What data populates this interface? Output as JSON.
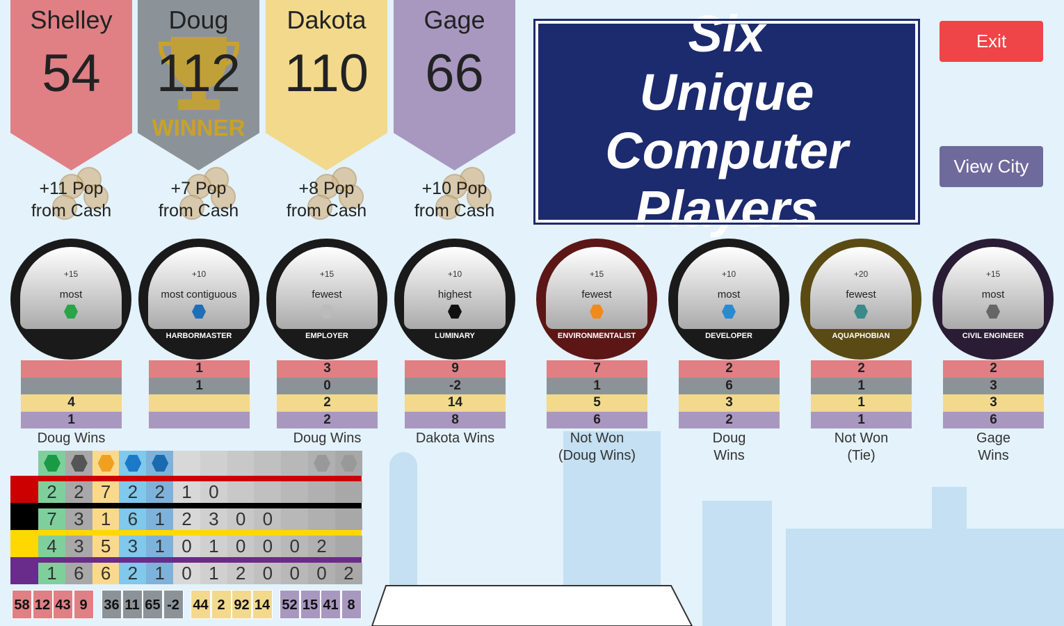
{
  "players": [
    {
      "name": "Shelley",
      "score": "54",
      "color": "#e07f84",
      "cash": "+11 Pop\nfrom Cash"
    },
    {
      "name": "Doug",
      "score": "112",
      "color": "#8c9398",
      "cash": "+7 Pop\nfrom Cash",
      "badge": "WINNER"
    },
    {
      "name": "Dakota",
      "score": "110",
      "color": "#f2d98c",
      "cash": "+8 Pop\nfrom Cash"
    },
    {
      "name": "Gage",
      "score": "66",
      "color": "#a898c0",
      "cash": "+10 Pop\nfrom Cash"
    }
  ],
  "buttons": {
    "exit": "Exit",
    "view_city": "View City",
    "exit_color": "#ef4448",
    "view_city_color": "#6e6a9c"
  },
  "goals": [
    {
      "points": "+15",
      "condition": "most",
      "title": "",
      "icon_color": "#2aa44a",
      "values": [
        "",
        "",
        "4",
        "1"
      ],
      "result": "Doug Wins",
      "ring": "#1a1a1a"
    },
    {
      "points": "+10",
      "condition": "most contiguous",
      "title": "HARBORMASTER",
      "icon_color": "#1f6fb8",
      "values": [
        "1",
        "1",
        "",
        ""
      ],
      "result": "",
      "ring": "#1a1a1a"
    },
    {
      "points": "+15",
      "condition": "fewest",
      "title": "EMPLOYER",
      "icon_color": "#bbbbbb",
      "values": [
        "3",
        "0",
        "2",
        "2"
      ],
      "result": "Doug Wins",
      "ring": "#1a1a1a"
    },
    {
      "points": "+10",
      "condition": "highest",
      "title": "LUMINARY",
      "icon_color": "#111111",
      "values": [
        "9",
        "-2",
        "14",
        "8"
      ],
      "result": "Dakota Wins",
      "ring": "#1a1a1a"
    },
    {
      "points": "+15",
      "condition": "fewest",
      "title": "ENVIRONMENTALIST",
      "icon_color": "#f08a1c",
      "values": [
        "7",
        "1",
        "5",
        "6"
      ],
      "result": "Not Won\n(Doug Wins)",
      "ring": "#5c1616"
    },
    {
      "points": "+10",
      "condition": "most",
      "title": "DEVELOPER",
      "icon_color": "#2a8ad0",
      "values": [
        "2",
        "6",
        "3",
        "2"
      ],
      "result": "Doug\nWins",
      "ring": "#1a1a1a"
    },
    {
      "points": "+20",
      "condition": "fewest",
      "title": "AQUAPHOBIAN",
      "icon_color": "#3a8a8a",
      "values": [
        "2",
        "1",
        "1",
        "1"
      ],
      "result": "Not Won\n(Tie)",
      "ring": "#5a4a14"
    },
    {
      "points": "+15",
      "condition": "most",
      "title": "CIVIL ENGINEER",
      "icon_color": "#666666",
      "values": [
        "2",
        "3",
        "3",
        "6"
      ],
      "result": "Gage\nWins",
      "ring": "#2a1c34"
    }
  ],
  "table": {
    "header_icons": [
      "residential-icon",
      "civic-icon",
      "industrial-icon",
      "commercial-icon",
      "lake-icon",
      "",
      "",
      "",
      "",
      "",
      "airport-icon",
      "2x-icon"
    ],
    "header_colors": [
      "#7fcf9c",
      "#a8a8a8",
      "#fcd98a",
      "#80c8ec",
      "#7fb2da",
      "#d8d8d8",
      "#d0d0d0",
      "#c8c8c8",
      "#c0c0c0",
      "#b8b8b8",
      "#b0b0b0",
      "#a8a8a8"
    ],
    "rows": [
      {
        "color": "#cc0000",
        "values": [
          "2",
          "2",
          "7",
          "2",
          "2",
          "1",
          "0",
          "",
          "",
          "",
          "",
          ""
        ]
      },
      {
        "color": "#000000",
        "values": [
          "7",
          "3",
          "1",
          "6",
          "1",
          "2",
          "3",
          "0",
          "0",
          "",
          "",
          ""
        ]
      },
      {
        "color": "#ffd800",
        "values": [
          "4",
          "3",
          "5",
          "3",
          "1",
          "0",
          "1",
          "0",
          "0",
          "0",
          "2",
          ""
        ]
      },
      {
        "color": "#6a2c8a",
        "values": [
          "1",
          "6",
          "6",
          "2",
          "1",
          "0",
          "1",
          "2",
          "0",
          "0",
          "0",
          "2"
        ]
      }
    ],
    "totals": [
      [
        "58",
        "12",
        "43",
        "9"
      ],
      [
        "36",
        "11",
        "65",
        "-2"
      ],
      [
        "44",
        "2",
        "92",
        "14"
      ],
      [
        "52",
        "15",
        "41",
        "8"
      ]
    ]
  },
  "promo": {
    "text": "Six Unique Computer Players",
    "color": "#1c2a6e"
  }
}
